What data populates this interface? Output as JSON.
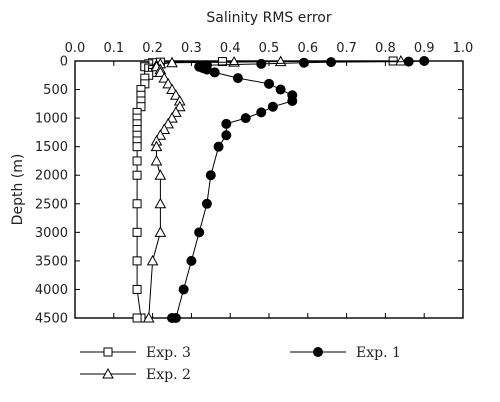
{
  "chart_data": {
    "type": "line",
    "title": "",
    "xlabel": "Salinity RMS error",
    "ylabel": "Depth (m)",
    "xlim": [
      0.0,
      1.0
    ],
    "ylim": [
      0,
      4500
    ],
    "x_axis_position": "top",
    "y_axis_inverted": true,
    "x_ticks": [
      "0.0",
      "0.1",
      "0.2",
      "0.3",
      "0.4",
      "0.5",
      "0.6",
      "0.7",
      "0.8",
      "0.9",
      "1.0"
    ],
    "y_ticks": [
      "0",
      "500",
      "1000",
      "1500",
      "2000",
      "2500",
      "3000",
      "3500",
      "4000",
      "4500"
    ],
    "grid": false,
    "legend_position": "bottom",
    "series": [
      {
        "name": "Exp. 3",
        "marker": "open-square",
        "x": [
          0.82,
          0.38,
          0.22,
          0.2,
          0.19,
          0.18,
          0.18,
          0.19,
          0.2,
          0.2,
          0.19,
          0.18,
          0.18,
          0.17,
          0.17,
          0.17,
          0.17,
          0.16,
          0.16,
          0.16,
          0.16,
          0.16,
          0.16,
          0.16,
          0.16,
          0.16,
          0.16,
          0.16,
          0.16,
          0.16,
          0.17,
          0.17,
          0.17,
          0.17,
          0.17,
          0.16
        ],
        "y": [
          0,
          10,
          20,
          30,
          50,
          75,
          100,
          125,
          150,
          200,
          250,
          300,
          400,
          500,
          600,
          700,
          800,
          900,
          1000,
          1100,
          1200,
          1300,
          1400,
          1500,
          1750,
          2000,
          2500,
          3000,
          3500,
          4000,
          4500,
          4500,
          4500,
          4500,
          4500,
          4500
        ]
      },
      {
        "name": "Exp. 2",
        "marker": "open-triangle",
        "x": [
          0.84,
          0.53,
          0.41,
          0.25,
          0.22,
          0.21,
          0.21,
          0.22,
          0.22,
          0.23,
          0.24,
          0.25,
          0.26,
          0.27,
          0.27,
          0.26,
          0.25,
          0.24,
          0.23,
          0.22,
          0.21,
          0.21,
          0.21,
          0.22,
          0.22,
          0.22,
          0.2,
          0.19
        ],
        "y": [
          0,
          10,
          20,
          30,
          50,
          75,
          100,
          150,
          200,
          300,
          400,
          500,
          600,
          700,
          800,
          900,
          1000,
          1100,
          1200,
          1300,
          1400,
          1500,
          1750,
          2000,
          2500,
          3000,
          3500,
          4500
        ]
      },
      {
        "name": "Exp. 1",
        "marker": "filled-circle",
        "x": [
          0.9,
          0.86,
          0.66,
          0.59,
          0.48,
          0.34,
          0.32,
          0.33,
          0.34,
          0.36,
          0.42,
          0.5,
          0.53,
          0.56,
          0.56,
          0.51,
          0.48,
          0.44,
          0.39,
          0.39,
          0.37,
          0.35,
          0.34,
          0.32,
          0.3,
          0.28,
          0.26,
          0.25
        ],
        "y": [
          0,
          10,
          20,
          30,
          50,
          75,
          100,
          125,
          150,
          200,
          300,
          400,
          500,
          600,
          700,
          800,
          900,
          1000,
          1100,
          1300,
          1500,
          2000,
          2500,
          3000,
          3500,
          4000,
          4500,
          4500
        ]
      }
    ]
  }
}
